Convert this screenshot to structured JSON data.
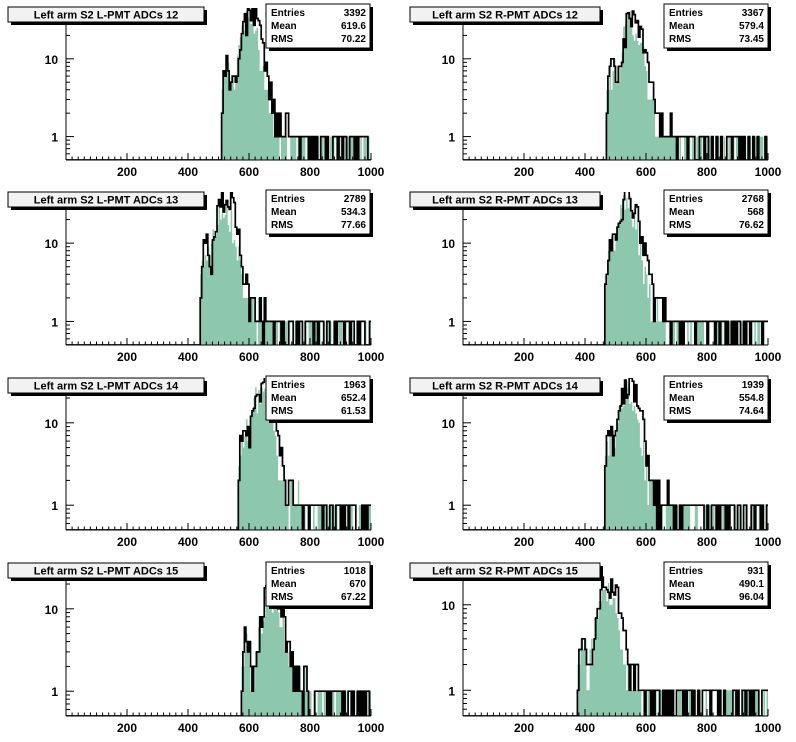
{
  "chart_data": [
    {
      "type": "histogram",
      "title": "Left arm S2 L-PMT ADCs 12",
      "stats": {
        "entries_label": "Entries",
        "entries": "3392",
        "mean_label": "Mean",
        "mean": "619.6",
        "rms_label": "RMS",
        "rms": "70.22"
      },
      "xlim": [
        0,
        1000
      ],
      "yscale": "log",
      "ylim": [
        0.5,
        45
      ],
      "x_ticks": [
        "200",
        "400",
        "600",
        "800",
        "1000"
      ],
      "y_ticks": [
        "1",
        "10"
      ],
      "peak": {
        "x": 600,
        "y": 40
      },
      "onset_x": 510,
      "series": [
        {
          "color": "#000000"
        },
        {
          "color": "#6fb99a"
        }
      ]
    },
    {
      "type": "histogram",
      "title": "Left arm S2 R-PMT ADCs 12",
      "stats": {
        "entries_label": "Entries",
        "entries": "3367",
        "mean_label": "Mean",
        "mean": "579.4",
        "rms_label": "RMS",
        "rms": "73.45"
      },
      "xlim": [
        0,
        1000
      ],
      "yscale": "log",
      "ylim": [
        0.5,
        45
      ],
      "x_ticks": [
        "200",
        "400",
        "600",
        "800",
        "1000"
      ],
      "y_ticks": [
        "1",
        "10"
      ],
      "peak": {
        "x": 555,
        "y": 40
      },
      "onset_x": 470,
      "series": [
        {
          "color": "#000000"
        },
        {
          "color": "#6fb99a"
        }
      ]
    },
    {
      "type": "histogram",
      "title": "Left arm S2 L-PMT ADCs 13",
      "stats": {
        "entries_label": "Entries",
        "entries": "2789",
        "mean_label": "Mean",
        "mean": "534.3",
        "rms_label": "RMS",
        "rms": "77.66"
      },
      "xlim": [
        0,
        1000
      ],
      "yscale": "log",
      "ylim": [
        0.5,
        45
      ],
      "x_ticks": [
        "200",
        "400",
        "600",
        "800",
        "1000"
      ],
      "y_ticks": [
        "1",
        "10"
      ],
      "peak": {
        "x": 520,
        "y": 40
      },
      "onset_x": 440,
      "series": [
        {
          "color": "#000000"
        },
        {
          "color": "#6fb99a"
        }
      ]
    },
    {
      "type": "histogram",
      "title": "Left arm S2 R-PMT ADCs 13",
      "stats": {
        "entries_label": "Entries",
        "entries": "2768",
        "mean_label": "Mean",
        "mean": "568",
        "rms_label": "RMS",
        "rms": "76.62"
      },
      "xlim": [
        0,
        1000
      ],
      "yscale": "log",
      "ylim": [
        0.5,
        45
      ],
      "x_ticks": [
        "200",
        "400",
        "600",
        "800",
        "1000"
      ],
      "y_ticks": [
        "1",
        "10"
      ],
      "peak": {
        "x": 540,
        "y": 40
      },
      "onset_x": 465,
      "series": [
        {
          "color": "#000000"
        },
        {
          "color": "#6fb99a"
        }
      ]
    },
    {
      "type": "histogram",
      "title": "Left arm S2 L-PMT ADCs 14",
      "stats": {
        "entries_label": "Entries",
        "entries": "1963",
        "mean_label": "Mean",
        "mean": "652.4",
        "rms_label": "RMS",
        "rms": "61.53"
      },
      "xlim": [
        0,
        1000
      ],
      "yscale": "log",
      "ylim": [
        0.5,
        35
      ],
      "x_ticks": [
        "200",
        "400",
        "600",
        "800",
        "1000"
      ],
      "y_ticks": [
        "1",
        "10"
      ],
      "peak": {
        "x": 640,
        "y": 30
      },
      "onset_x": 565,
      "series": [
        {
          "color": "#000000"
        },
        {
          "color": "#6fb99a"
        }
      ]
    },
    {
      "type": "histogram",
      "title": "Left arm S2 R-PMT ADCs 14",
      "stats": {
        "entries_label": "Entries",
        "entries": "1939",
        "mean_label": "Mean",
        "mean": "554.8",
        "rms_label": "RMS",
        "rms": "74.64"
      },
      "xlim": [
        0,
        1000
      ],
      "yscale": "log",
      "ylim": [
        0.5,
        35
      ],
      "x_ticks": [
        "200",
        "400",
        "600",
        "800",
        "1000"
      ],
      "y_ticks": [
        "1",
        "10"
      ],
      "peak": {
        "x": 540,
        "y": 30
      },
      "onset_x": 462,
      "series": [
        {
          "color": "#000000"
        },
        {
          "color": "#6fb99a"
        }
      ]
    },
    {
      "type": "histogram",
      "title": "Left arm S2 L-PMT ADCs 15",
      "stats": {
        "entries_label": "Entries",
        "entries": "1018",
        "mean_label": "Mean",
        "mean": "670",
        "rms_label": "RMS",
        "rms": "67.22"
      },
      "xlim": [
        0,
        1000
      ],
      "yscale": "log",
      "ylim": [
        0.5,
        35
      ],
      "x_ticks": [
        "200",
        "400",
        "600",
        "800",
        "1000"
      ],
      "y_ticks": [
        "1",
        "10"
      ],
      "peak": {
        "x": 670,
        "y": 20
      },
      "onset_x": 575,
      "series": [
        {
          "color": "#000000"
        },
        {
          "color": "#6fb99a"
        }
      ]
    },
    {
      "type": "histogram",
      "title": "Left arm S2 R-PMT ADCs 15",
      "stats": {
        "entries_label": "Entries",
        "entries": "931",
        "mean_label": "Mean",
        "mean": "490.1",
        "rms_label": "RMS",
        "rms": "96.04"
      },
      "xlim": [
        0,
        1000
      ],
      "yscale": "log",
      "ylim": [
        0.5,
        30
      ],
      "x_ticks": [
        "200",
        "400",
        "600",
        "800",
        "1000"
      ],
      "y_ticks": [
        "1",
        "10"
      ],
      "peak": {
        "x": 470,
        "y": 20
      },
      "onset_x": 375,
      "series": [
        {
          "color": "#000000"
        },
        {
          "color": "#6fb99a"
        }
      ]
    }
  ]
}
